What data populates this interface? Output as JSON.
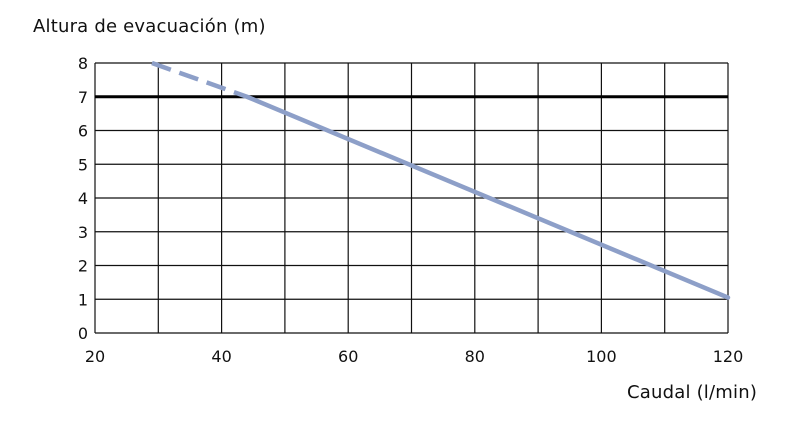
{
  "chart_data": {
    "type": "line",
    "title": "",
    "ylabel": "Altura de evacuación (m)",
    "xlabel": "Caudal (l/min)",
    "xlim": [
      20,
      120
    ],
    "ylim": [
      0,
      8
    ],
    "x_ticks": [
      20,
      40,
      60,
      80,
      100,
      120
    ],
    "x_gridlines": [
      20,
      30,
      40,
      50,
      60,
      70,
      80,
      90,
      100,
      110,
      120
    ],
    "y_ticks": [
      0,
      1,
      2,
      3,
      4,
      5,
      6,
      7,
      8
    ],
    "grid": true,
    "reference_line": {
      "y": 7
    },
    "series": [
      {
        "values": [
          {
            "x": 29,
            "y": 8.0
          },
          {
            "x": 44,
            "y": 7.0
          },
          {
            "x": 120,
            "y": 1.05
          }
        ],
        "dashed_until_x": 44,
        "color": "#8d9fc8"
      }
    ],
    "grid_color": "#111111",
    "reference_color": "#000000"
  }
}
